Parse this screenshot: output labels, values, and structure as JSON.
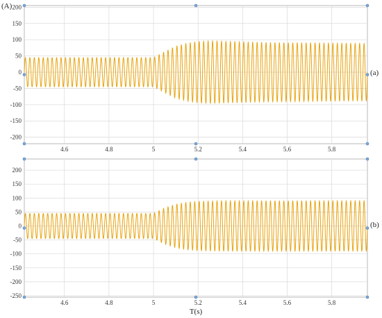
{
  "chart_data": [
    {
      "type": "line",
      "panel_label": "(a)",
      "ylabel": "(A)",
      "xlabel": "",
      "xlim": [
        4.42,
        5.96
      ],
      "ylim": [
        -220,
        205
      ],
      "xticks": [
        4.6,
        4.8,
        5.0,
        5.2,
        5.4,
        5.6,
        5.8
      ],
      "xtick_labels": [
        "4.6",
        "4.8",
        "5",
        "5.2",
        "5.4",
        "5.6",
        "5.8"
      ],
      "yticks": [
        200,
        150,
        100,
        50,
        0,
        -50,
        -100,
        -150,
        -200
      ],
      "ytick_labels": [
        "200",
        "150",
        "100",
        "50",
        "0",
        "-50",
        "-100",
        "-150",
        "-200"
      ],
      "grid": true,
      "series": [
        {
          "color": "#E8A20C",
          "frequency_hz": 50,
          "envelope_x": [
            4.42,
            5.0,
            5.05,
            5.1,
            5.15,
            5.2,
            5.25,
            5.3,
            5.5,
            5.96
          ],
          "envelope_amp": [
            45,
            45,
            63,
            80,
            89,
            94,
            96,
            95,
            91,
            88
          ]
        }
      ]
    },
    {
      "type": "line",
      "panel_label": "(b)",
      "ylabel": "",
      "xlabel": "T(s)",
      "xlim": [
        4.42,
        5.96
      ],
      "ylim": [
        -255,
        240
      ],
      "xticks": [
        4.6,
        4.8,
        5.0,
        5.2,
        5.4,
        5.6,
        5.8
      ],
      "xtick_labels": [
        "4.6",
        "4.8",
        "5",
        "5.2",
        "5.4",
        "5.6",
        "5.8"
      ],
      "yticks": [
        200,
        150,
        100,
        50,
        0,
        -50,
        -100,
        -150,
        -200,
        -250
      ],
      "ytick_labels": [
        "200",
        "150",
        "100",
        "50",
        "0",
        "-50",
        "-100",
        "-150",
        "-200",
        "-250"
      ],
      "grid": true,
      "series": [
        {
          "color": "#E8A20C",
          "frequency_hz": 50,
          "envelope_x": [
            4.42,
            5.0,
            5.05,
            5.1,
            5.15,
            5.2,
            5.3,
            5.96
          ],
          "envelope_amp": [
            45,
            45,
            65,
            78,
            85,
            88,
            90,
            90
          ]
        }
      ]
    }
  ]
}
